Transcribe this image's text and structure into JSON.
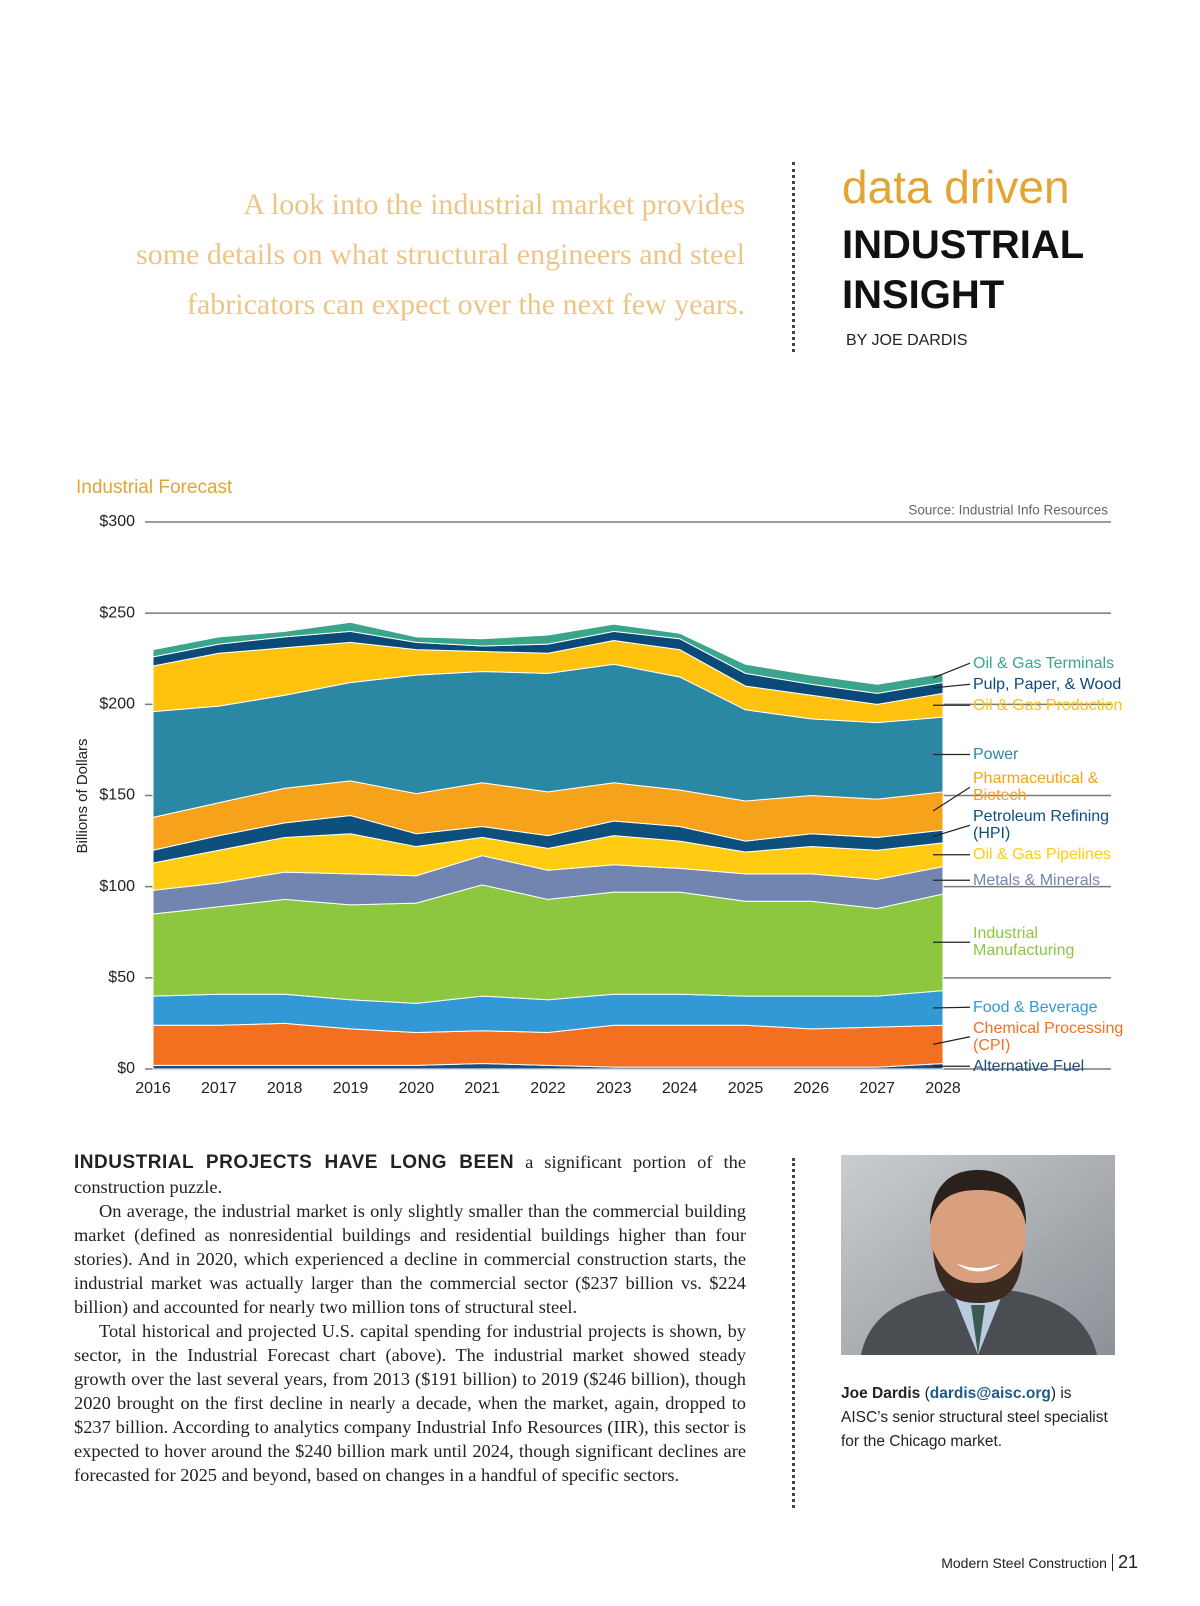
{
  "header": {
    "quote_lines": [
      "A look into the industrial market provides",
      "some details on what structural engineers and steel",
      "fabricators can expect over the next few years."
    ],
    "kicker": "data driven",
    "title_lines": [
      "INDUSTRIAL",
      "INSIGHT"
    ],
    "byline": "BY JOE DARDIS"
  },
  "chart_data": {
    "type": "stacked_area",
    "title": "Industrial Forecast",
    "source": "Source: Industrial Info Resources",
    "ylabel": "Billions of Dollars",
    "x": [
      2016,
      2017,
      2018,
      2019,
      2020,
      2021,
      2022,
      2023,
      2024,
      2025,
      2026,
      2027,
      2028
    ],
    "xlim": [
      2016,
      2028
    ],
    "ylim": [
      0,
      300
    ],
    "yticks": [
      {
        "value": 0,
        "label": "$0"
      },
      {
        "value": 50,
        "label": "$50"
      },
      {
        "value": 100,
        "label": "$100"
      },
      {
        "value": 150,
        "label": "$150"
      },
      {
        "value": 200,
        "label": "$200"
      },
      {
        "value": 250,
        "label": "$250"
      },
      {
        "value": 300,
        "label": "$300"
      }
    ],
    "grid": true,
    "series": [
      {
        "name": "Alternative Fuel",
        "color": "#1b4d7e",
        "values": [
          2,
          2,
          2,
          2,
          2,
          3,
          2,
          1,
          1,
          1,
          1,
          1,
          3
        ]
      },
      {
        "name": "Chemical Processing (CPI)",
        "color": "#f37021",
        "values": [
          22,
          22,
          23,
          20,
          18,
          18,
          18,
          23,
          23,
          23,
          21,
          22,
          21
        ]
      },
      {
        "name": "Food & Beverage",
        "color": "#3399d6",
        "values": [
          16,
          17,
          16,
          16,
          16,
          19,
          18,
          17,
          17,
          16,
          18,
          17,
          19
        ]
      },
      {
        "name": "Industrial Manufacturing",
        "color": "#8dc63f",
        "values": [
          45,
          48,
          52,
          52,
          55,
          61,
          55,
          56,
          56,
          52,
          52,
          48,
          53
        ]
      },
      {
        "name": "Metals & Minerals",
        "color": "#7185b0",
        "values": [
          13,
          13,
          15,
          17,
          15,
          16,
          16,
          15,
          13,
          15,
          15,
          16,
          15
        ]
      },
      {
        "name": "Oil & Gas Pipelines",
        "color": "#ffcc11",
        "values": [
          15,
          18,
          19,
          22,
          16,
          10,
          12,
          16,
          15,
          12,
          15,
          16,
          13
        ]
      },
      {
        "name": "Petroleum Refining (HPI)",
        "color": "#0d4f7d",
        "values": [
          7,
          8,
          8,
          10,
          7,
          6,
          7,
          8,
          8,
          6,
          7,
          7,
          7
        ]
      },
      {
        "name": "Pharmaceutical & Biotech",
        "color": "#f7a21b",
        "values": [
          18,
          18,
          19,
          19,
          22,
          24,
          24,
          21,
          20,
          22,
          21,
          21,
          21
        ]
      },
      {
        "name": "Power",
        "color": "#2b88a5",
        "values": [
          58,
          53,
          51,
          54,
          65,
          61,
          65,
          65,
          62,
          50,
          42,
          42,
          41
        ]
      },
      {
        "name": "Oil & Gas Production",
        "color": "#ffc20e",
        "values": [
          25,
          29,
          26,
          22,
          14,
          11,
          11,
          13,
          15,
          13,
          13,
          10,
          13
        ]
      },
      {
        "name": "Pulp, Paper, & Wood",
        "color": "#0b4a78",
        "values": [
          5,
          5,
          6,
          6,
          4,
          3,
          5,
          5,
          6,
          7,
          6,
          6,
          6
        ]
      },
      {
        "name": "Oil & Gas Terminals",
        "color": "#3aa58a",
        "values": [
          4,
          4,
          3,
          5,
          3,
          4,
          5,
          4,
          3,
          5,
          5,
          5,
          5
        ]
      }
    ]
  },
  "article": {
    "lead": "INDUSTRIAL PROJECTS HAVE LONG BEEN",
    "paragraphs": [
      "a significant portion of the construction puzzle.",
      "On average, the industrial market is only slightly smaller than the commercial building market (defined as nonresidential buildings and residential buildings higher than four stories). And in 2020, which experienced a decline in commercial construction starts, the industrial market was actually larger than the commercial sector ($237 billion vs. $224 billion) and accounted for nearly two million tons of structural steel.",
      "Total historical and projected U.S. capital spending for industrial projects is shown, by sector, in the Industrial Forecast chart (above). The industrial market showed steady growth over the last several years, from 2013 ($191 billion) to 2019 ($246 billion), though 2020 brought on the first decline in nearly a decade, when the market, again, dropped to $237 billion. According to analytics company Industrial Info Resources (IIR), this sector is expected to hover around the $240 billion mark until 2024, though significant declines are forecasted for 2025 and beyond, based on changes in a handful of specific sectors."
    ]
  },
  "caption": {
    "name": "Joe Dardis",
    "email_parts": [
      "(",
      "dardis@aisc.org",
      ")"
    ],
    "text": "is AISC’s senior structural steel specialist for the Chicago market."
  },
  "footer": {
    "publication": "Modern Steel Construction",
    "page": "21"
  }
}
